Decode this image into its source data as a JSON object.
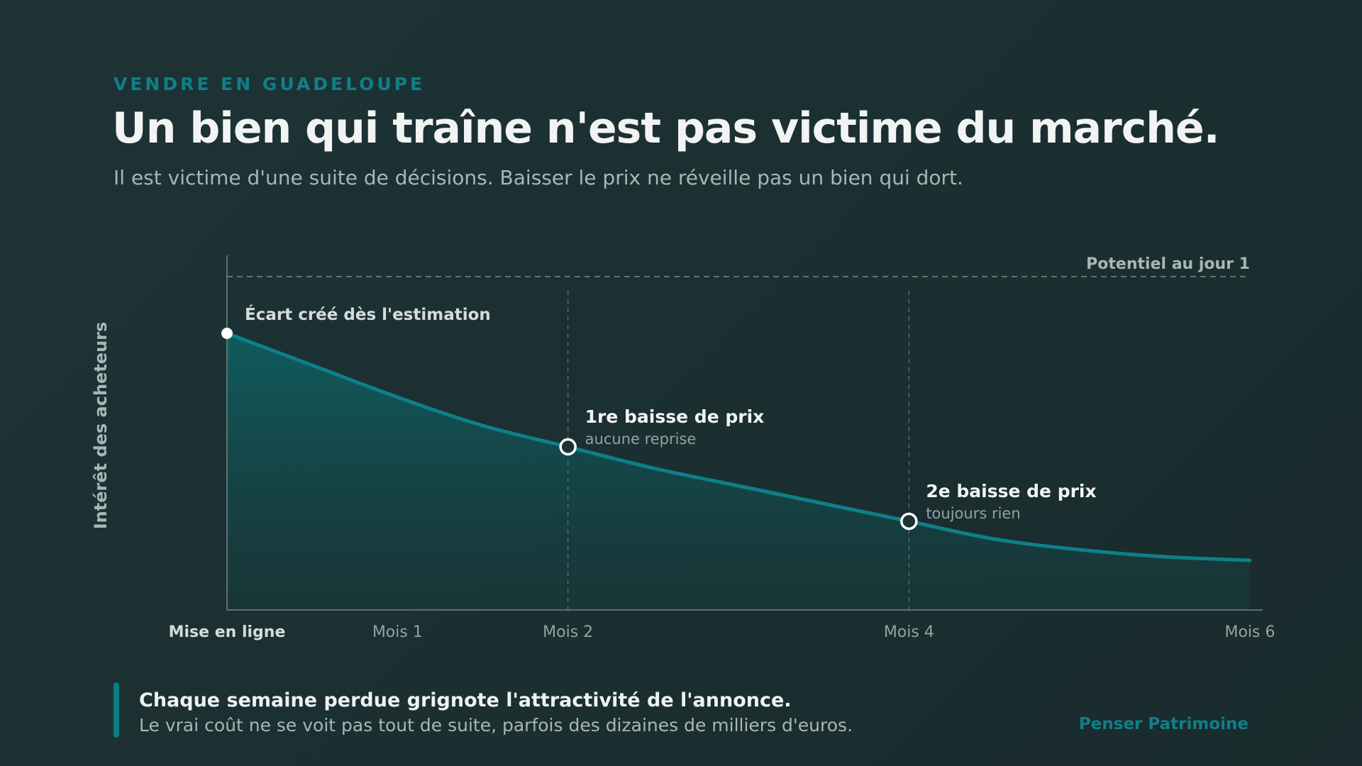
{
  "header": {
    "eyebrow": "VENDRE EN GUADELOUPE",
    "title": "Un bien qui traîne n'est pas victime du marché.",
    "subtitle": "Il est victime d'une suite de décisions. Baisser le prix ne réveille pas un bien qui dort."
  },
  "footer": {
    "takeaway_title": "Chaque semaine perdue grignote l'attractivité de l'annonce.",
    "takeaway_text": "Le vrai coût ne se voit pas tout de suite, parfois des dizaines de milliers d'euros.",
    "brand": "Penser Patrimoine"
  },
  "colors": {
    "accent": "#0a7d86",
    "curve": "#0d8089",
    "text_primary": "#eef2f1",
    "text_muted": "#a9b6b5",
    "background": "#1c3133"
  },
  "chart_data": {
    "type": "area",
    "title": "",
    "xlabel": "",
    "ylabel": "Intérêt des acheteurs",
    "xlim": [
      0,
      6
    ],
    "ylim": [
      0,
      1
    ],
    "grid": false,
    "x_ticks": [
      {
        "value": 0,
        "label": "Mise en ligne",
        "emphasis": true
      },
      {
        "value": 1,
        "label": "Mois 1"
      },
      {
        "value": 2,
        "label": "Mois 2"
      },
      {
        "value": 4,
        "label": "Mois 4"
      },
      {
        "value": 6,
        "label": "Mois 6"
      }
    ],
    "series": [
      {
        "x": [
          0,
          0.5,
          1,
          1.5,
          2,
          2.5,
          3,
          3.5,
          4,
          4.5,
          5,
          5.5,
          6
        ],
        "values": [
          0.78,
          0.69,
          0.6,
          0.52,
          0.46,
          0.4,
          0.35,
          0.3,
          0.25,
          0.2,
          0.17,
          0.15,
          0.14
        ]
      }
    ],
    "reference_line": {
      "y": 0.94,
      "label": "Potentiel au jour 1"
    },
    "vertical_markers": [
      0,
      2,
      4
    ],
    "annotations": [
      {
        "x": 0,
        "y": 0.78,
        "label": "Écart créé dès l'estimation",
        "sublabel": "",
        "filled": true
      },
      {
        "x": 2,
        "y": 0.46,
        "label": "1re baisse de prix",
        "sublabel": "aucune reprise",
        "filled": false
      },
      {
        "x": 4,
        "y": 0.25,
        "label": "2e baisse de prix",
        "sublabel": "toujours rien",
        "filled": false
      }
    ]
  }
}
